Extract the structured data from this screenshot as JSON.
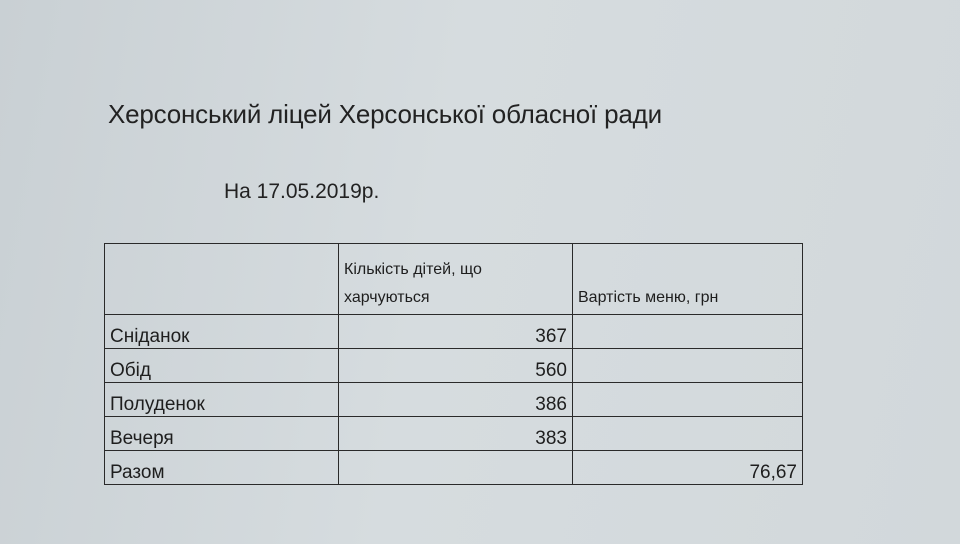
{
  "document": {
    "title": "Херсонський ліцей Херсонської обласної ради",
    "date_line": "На 17.05.2019р.",
    "table": {
      "headers": [
        "",
        "Кількість дітей, що харчуються",
        "Вартість меню, грн"
      ],
      "rows": [
        {
          "label": "Сніданок",
          "children": "367",
          "cost": ""
        },
        {
          "label": "Обід",
          "children": "560",
          "cost": ""
        },
        {
          "label": "Полуденок",
          "children": "386",
          "cost": ""
        },
        {
          "label": "Вечеря",
          "children": "383",
          "cost": ""
        },
        {
          "label": "Разом",
          "children": "",
          "cost": "76,67"
        }
      ]
    }
  }
}
